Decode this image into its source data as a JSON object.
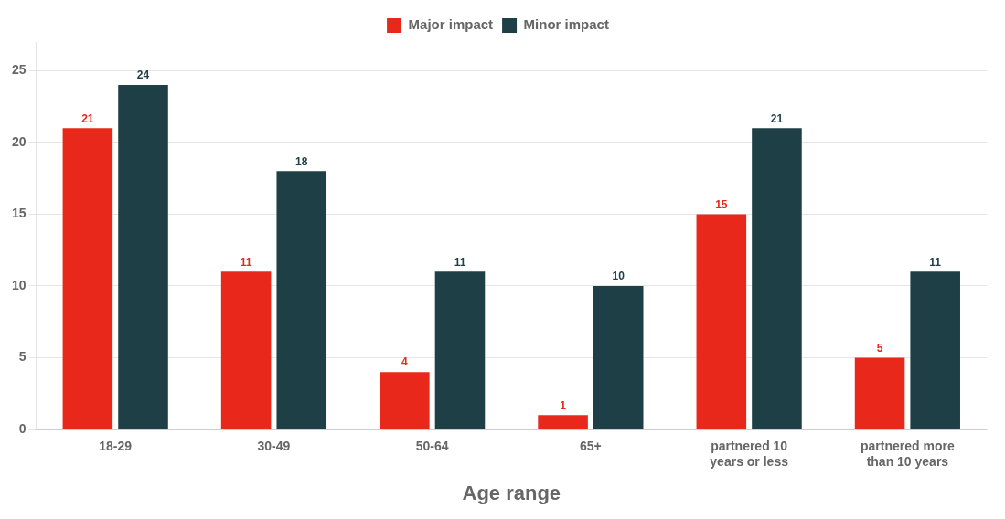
{
  "chart_data": {
    "type": "bar",
    "categories": [
      "18-29",
      "30-49",
      "50-64",
      "65+",
      "partnered 10\nyears or less",
      "partnered more\nthan 10 years"
    ],
    "series": [
      {
        "name": "Major impact",
        "color": "#e8281a",
        "values": [
          21,
          11,
          4,
          1,
          15,
          5
        ]
      },
      {
        "name": "Minor impact",
        "color": "#1d3f45",
        "values": [
          24,
          18,
          11,
          10,
          21,
          11
        ]
      }
    ],
    "xlabel": "Age range",
    "ylim": [
      0,
      27
    ],
    "yticks": [
      0,
      5,
      10,
      15,
      20,
      25
    ],
    "grid": true,
    "legend": "top",
    "data_labels": true
  }
}
